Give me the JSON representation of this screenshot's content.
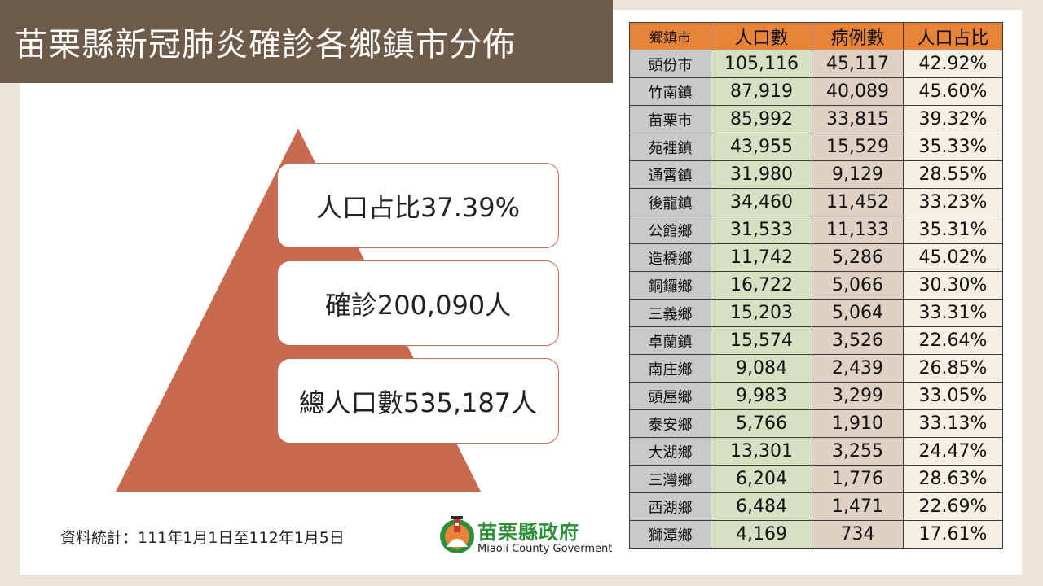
{
  "title": "苗栗縣新冠肺炎確診各鄉鎮市分佈",
  "colors": {
    "title_band": "#6e5a48",
    "pyramid": "#c76a50",
    "header": "#e8833a",
    "col_town": "#c9c9c9",
    "col_population": "#d6e0c2",
    "col_cases": "#dfd1c4",
    "col_ratio": "#f6f0e4",
    "logo_green": "#2e8f3a"
  },
  "pyramid": {
    "ratio_label": "人口占比37.39%",
    "cases_label": "確診200,090人",
    "population_label": "總人口數535,187人"
  },
  "note": "資料統計：111年1月1日至112年1月5日",
  "logo": {
    "name": "苗栗縣政府",
    "english": "Miaoli County Goverment",
    "icon": "county-emblem-icon"
  },
  "table": {
    "headers": [
      "鄉鎮市",
      "人口數",
      "病例數",
      "人口占比"
    ],
    "rows": [
      [
        "頭份市",
        "105,116",
        "45,117",
        "42.92%"
      ],
      [
        "竹南鎮",
        "87,919",
        "40,089",
        "45.60%"
      ],
      [
        "苗栗市",
        "85,992",
        "33,815",
        "39.32%"
      ],
      [
        "苑裡鎮",
        "43,955",
        "15,529",
        "35.33%"
      ],
      [
        "通霄鎮",
        "31,980",
        "9,129",
        "28.55%"
      ],
      [
        "後龍鎮",
        "34,460",
        "11,452",
        "33.23%"
      ],
      [
        "公館鄉",
        "31,533",
        "11,133",
        "35.31%"
      ],
      [
        "造橋鄉",
        "11,742",
        "5,286",
        "45.02%"
      ],
      [
        "銅鑼鄉",
        "16,722",
        "5,066",
        "30.30%"
      ],
      [
        "三義鄉",
        "15,203",
        "5,064",
        "33.31%"
      ],
      [
        "卓蘭鎮",
        "15,574",
        "3,526",
        "22.64%"
      ],
      [
        "南庄鄉",
        "9,084",
        "2,439",
        "26.85%"
      ],
      [
        "頭屋鄉",
        "9,983",
        "3,299",
        "33.05%"
      ],
      [
        "泰安鄉",
        "5,766",
        "1,910",
        "33.13%"
      ],
      [
        "大湖鄉",
        "13,301",
        "3,255",
        "24.47%"
      ],
      [
        "三灣鄉",
        "6,204",
        "1,776",
        "28.63%"
      ],
      [
        "西湖鄉",
        "6,484",
        "1,471",
        "22.69%"
      ],
      [
        "獅潭鄉",
        "4,169",
        "734",
        "17.61%"
      ]
    ]
  }
}
